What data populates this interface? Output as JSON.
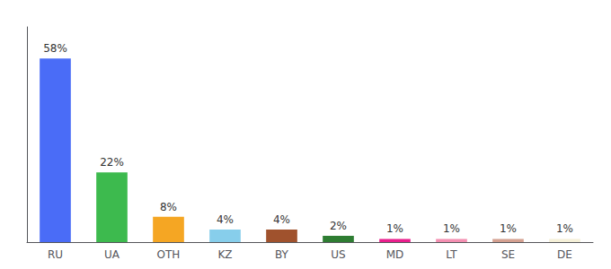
{
  "chart_data": {
    "type": "bar",
    "categories": [
      "RU",
      "UA",
      "OTH",
      "KZ",
      "BY",
      "US",
      "MD",
      "LT",
      "SE",
      "DE"
    ],
    "values": [
      58,
      22,
      8,
      4,
      4,
      2,
      1,
      1,
      1,
      1
    ],
    "value_labels": [
      "58%",
      "22%",
      "8%",
      "4%",
      "4%",
      "2%",
      "1%",
      "1%",
      "1%",
      "1%"
    ],
    "colors": [
      "#4a6cf7",
      "#3dba4e",
      "#f5a623",
      "#87ceeb",
      "#a0522d",
      "#2e7d32",
      "#e91e8c",
      "#f48fb1",
      "#d4a090",
      "#f5f0d8"
    ],
    "data_labels": true,
    "ylim": [
      0,
      68
    ],
    "tick_labels": "x",
    "grid": false
  }
}
